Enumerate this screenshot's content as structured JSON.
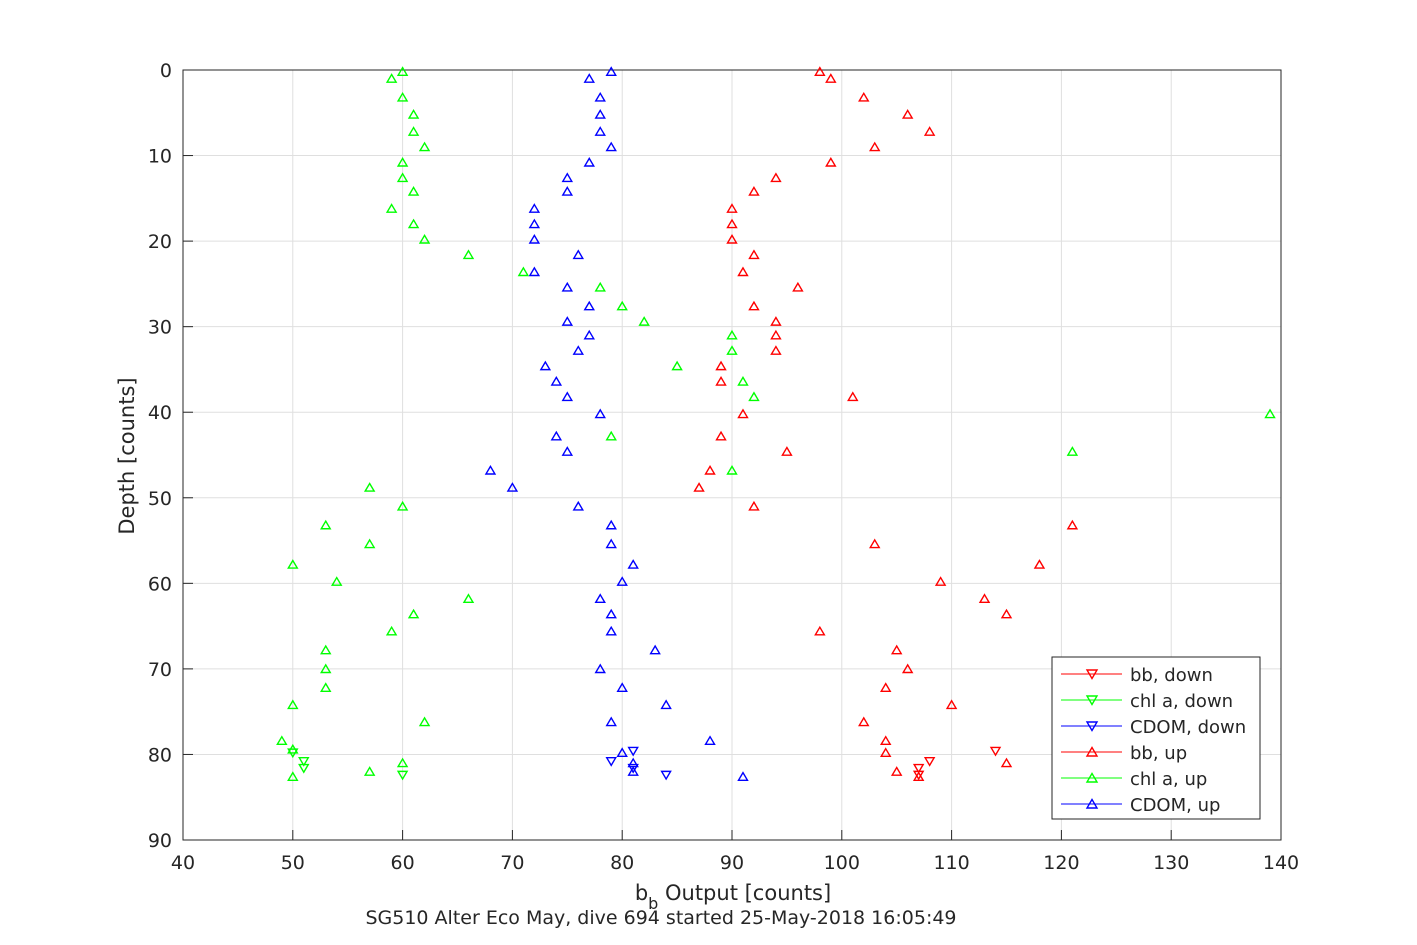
{
  "chart_data": {
    "type": "scatter",
    "xlabel_main": "b",
    "xlabel_sub": "b",
    "xlabel_rest": " Output [counts]",
    "ylabel": "Depth [counts]",
    "subtitle": "SG510 Alter Eco May, dive 694 started 25-May-2018 16:05:49",
    "xlim": [
      40,
      140
    ],
    "ylim": [
      0,
      90
    ],
    "y_reversed": true,
    "grid": true,
    "legend_position": "bottom-right",
    "xticks": [
      "40",
      "50",
      "60",
      "70",
      "80",
      "90",
      "100",
      "110",
      "120",
      "130",
      "140"
    ],
    "yticks": [
      "0",
      "10",
      "20",
      "30",
      "40",
      "50",
      "60",
      "70",
      "80",
      "90"
    ],
    "series": [
      {
        "name": "bb, down",
        "color": "#ff0000",
        "marker": "triangle-down",
        "points": [
          [
            107,
            81.6
          ],
          [
            107,
            82.4
          ],
          [
            108,
            80.8
          ],
          [
            114,
            79.6
          ]
        ]
      },
      {
        "name": "chl a, down",
        "color": "#00ff00",
        "marker": "triangle-down",
        "points": [
          [
            50,
            79.8
          ],
          [
            51,
            80.8
          ],
          [
            51,
            81.6
          ],
          [
            60,
            82.4
          ]
        ]
      },
      {
        "name": "CDOM, down",
        "color": "#0000ff",
        "marker": "triangle-down",
        "points": [
          [
            79,
            80.8
          ],
          [
            81,
            79.6
          ],
          [
            81,
            81.6
          ],
          [
            84,
            82.4
          ]
        ]
      },
      {
        "name": "bb, up",
        "color": "#ff0000",
        "marker": "triangle-up",
        "points": [
          [
            98,
            0.2
          ],
          [
            99,
            1.0
          ],
          [
            102,
            3.2
          ],
          [
            106,
            5.2
          ],
          [
            108,
            7.2
          ],
          [
            103,
            9.0
          ],
          [
            99,
            10.8
          ],
          [
            94,
            12.6
          ],
          [
            92,
            14.2
          ],
          [
            90,
            16.2
          ],
          [
            90,
            18.0
          ],
          [
            90,
            19.8
          ],
          [
            92,
            21.6
          ],
          [
            91,
            23.6
          ],
          [
            96,
            25.4
          ],
          [
            92,
            27.6
          ],
          [
            94,
            29.4
          ],
          [
            94,
            31.0
          ],
          [
            94,
            32.8
          ],
          [
            89,
            34.6
          ],
          [
            89,
            36.4
          ],
          [
            101,
            38.2
          ],
          [
            91,
            40.2
          ],
          [
            89,
            42.8
          ],
          [
            95,
            44.6
          ],
          [
            88,
            46.8
          ],
          [
            87,
            48.8
          ],
          [
            92,
            51.0
          ],
          [
            121,
            53.2
          ],
          [
            103,
            55.4
          ],
          [
            118,
            57.8
          ],
          [
            109,
            59.8
          ],
          [
            113,
            61.8
          ],
          [
            115,
            63.6
          ],
          [
            98,
            65.6
          ],
          [
            105,
            67.8
          ],
          [
            106,
            70.0
          ],
          [
            104,
            72.2
          ],
          [
            110,
            74.2
          ],
          [
            102,
            76.2
          ],
          [
            104,
            78.4
          ],
          [
            104,
            79.8
          ],
          [
            115,
            81.0
          ],
          [
            105,
            82.0
          ],
          [
            107,
            82.6
          ]
        ]
      },
      {
        "name": "chl a, up",
        "color": "#00ff00",
        "marker": "triangle-up",
        "points": [
          [
            60,
            0.2
          ],
          [
            59,
            1.0
          ],
          [
            60,
            3.2
          ],
          [
            61,
            5.2
          ],
          [
            61,
            7.2
          ],
          [
            62,
            9.0
          ],
          [
            60,
            10.8
          ],
          [
            60,
            12.6
          ],
          [
            61,
            14.2
          ],
          [
            59,
            16.2
          ],
          [
            61,
            18.0
          ],
          [
            62,
            19.8
          ],
          [
            66,
            21.6
          ],
          [
            71,
            23.6
          ],
          [
            78,
            25.4
          ],
          [
            80,
            27.6
          ],
          [
            82,
            29.4
          ],
          [
            90,
            31.0
          ],
          [
            90,
            32.8
          ],
          [
            85,
            34.6
          ],
          [
            91,
            36.4
          ],
          [
            92,
            38.2
          ],
          [
            139,
            40.2
          ],
          [
            79,
            42.8
          ],
          [
            121,
            44.6
          ],
          [
            90,
            46.8
          ],
          [
            57,
            48.8
          ],
          [
            60,
            51.0
          ],
          [
            53,
            53.2
          ],
          [
            57,
            55.4
          ],
          [
            50,
            57.8
          ],
          [
            54,
            59.8
          ],
          [
            66,
            61.8
          ],
          [
            61,
            63.6
          ],
          [
            59,
            65.6
          ],
          [
            53,
            67.8
          ],
          [
            53,
            70.0
          ],
          [
            53,
            72.2
          ],
          [
            50,
            74.2
          ],
          [
            62,
            76.2
          ],
          [
            49,
            78.4
          ],
          [
            50,
            79.4
          ],
          [
            60,
            81.0
          ],
          [
            57,
            82.0
          ],
          [
            50,
            82.6
          ]
        ]
      },
      {
        "name": "CDOM, up",
        "color": "#0000ff",
        "marker": "triangle-up",
        "points": [
          [
            79,
            0.2
          ],
          [
            77,
            1.0
          ],
          [
            78,
            3.2
          ],
          [
            78,
            5.2
          ],
          [
            78,
            7.2
          ],
          [
            79,
            9.0
          ],
          [
            77,
            10.8
          ],
          [
            75,
            12.6
          ],
          [
            75,
            14.2
          ],
          [
            72,
            16.2
          ],
          [
            72,
            18.0
          ],
          [
            72,
            19.8
          ],
          [
            76,
            21.6
          ],
          [
            72,
            23.6
          ],
          [
            75,
            25.4
          ],
          [
            77,
            27.6
          ],
          [
            75,
            29.4
          ],
          [
            77,
            31.0
          ],
          [
            76,
            32.8
          ],
          [
            73,
            34.6
          ],
          [
            74,
            36.4
          ],
          [
            75,
            38.2
          ],
          [
            78,
            40.2
          ],
          [
            74,
            42.8
          ],
          [
            75,
            44.6
          ],
          [
            68,
            46.8
          ],
          [
            70,
            48.8
          ],
          [
            76,
            51.0
          ],
          [
            79,
            53.2
          ],
          [
            79,
            55.4
          ],
          [
            81,
            57.8
          ],
          [
            80,
            59.8
          ],
          [
            78,
            61.8
          ],
          [
            79,
            63.6
          ],
          [
            79,
            65.6
          ],
          [
            83,
            67.8
          ],
          [
            78,
            70.0
          ],
          [
            80,
            72.2
          ],
          [
            84,
            74.2
          ],
          [
            79,
            76.2
          ],
          [
            88,
            78.4
          ],
          [
            80,
            79.8
          ],
          [
            81,
            81.0
          ],
          [
            81,
            82.0
          ],
          [
            91,
            82.6
          ]
        ]
      }
    ]
  }
}
